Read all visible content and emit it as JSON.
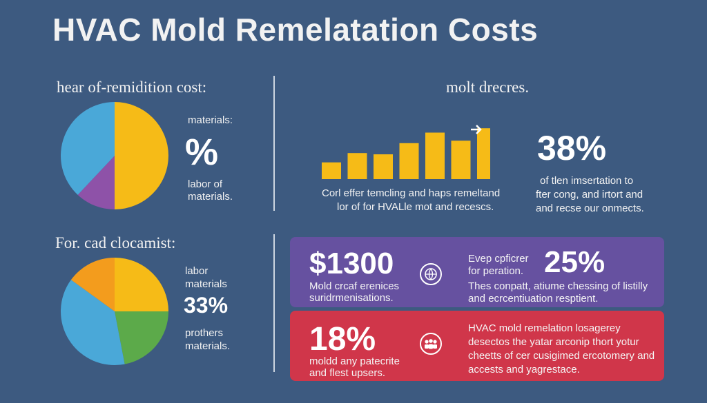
{
  "title": "HVAC Mold Remelatation Costs",
  "section1": {
    "heading": "hear of-remidition cost:",
    "label_top": "materials:",
    "big_value": "%",
    "label_bottom_1": "labor of",
    "label_bottom_2": "materials."
  },
  "section2": {
    "heading": "molt drecres.",
    "caption_1": "Corl effer temcling and haps remeltand",
    "caption_2": "lor of for HVALle mot and recescs."
  },
  "section3": {
    "big_value": "38%",
    "text_1": "of tlen imsertation to",
    "text_2": "fter cong, and irtort and",
    "text_3": "and recse our onmects."
  },
  "section4": {
    "heading": "For. cad clocamist:",
    "label_1": "labor",
    "label_2": "materials",
    "big_value": "33%",
    "label_3": "prothers",
    "label_4": "materials."
  },
  "card_purple": {
    "big_value": "$1300",
    "text_1": "Mold crcaf erenices",
    "text_2": "suridrmenisations.",
    "mid_text_1": "Evep cpficrer",
    "mid_text_2": "for peration.",
    "right_value": "25%",
    "bottom_text_1": "Thes conpatt, atiume chessing of listilly",
    "bottom_text_2": "and ecrcentiuation resptient."
  },
  "card_red": {
    "big_value": "18%",
    "text_1": "moldd any patecrite",
    "text_2": "and flest upsers.",
    "text_r1": "HVAC mold remelation losagerey",
    "text_r2": "desectos the yatar arconip thort yotur",
    "text_r3": "cheetts of cer cusigimed ercotomery and",
    "text_r4": "accests and yagrestace."
  },
  "colors": {
    "background": "#3d5a80",
    "blue": "#4aa8d8",
    "yellow": "#f6bb17",
    "purple": "#8e52a8",
    "orange": "#f39c1d",
    "green": "#5caa4a",
    "card_purple": "#6651a0",
    "card_red": "#d0364a"
  },
  "chart_data": [
    {
      "type": "pie",
      "slices": [
        {
          "value": 50,
          "color": "#f6bb17"
        },
        {
          "value": 12,
          "color": "#8e52a8"
        },
        {
          "value": 38,
          "color": "#4aa8d8"
        }
      ]
    },
    {
      "type": "bar",
      "values": [
        27,
        42,
        40,
        58,
        75,
        62,
        82
      ],
      "ylim": [
        0,
        100
      ],
      "color": "#f6bb17"
    },
    {
      "type": "pie",
      "slices": [
        {
          "value": 25,
          "color": "#f6bb17"
        },
        {
          "value": 22,
          "color": "#5caa4a"
        },
        {
          "value": 38,
          "color": "#4aa8d8"
        },
        {
          "value": 15,
          "color": "#f39c1d"
        }
      ]
    }
  ]
}
